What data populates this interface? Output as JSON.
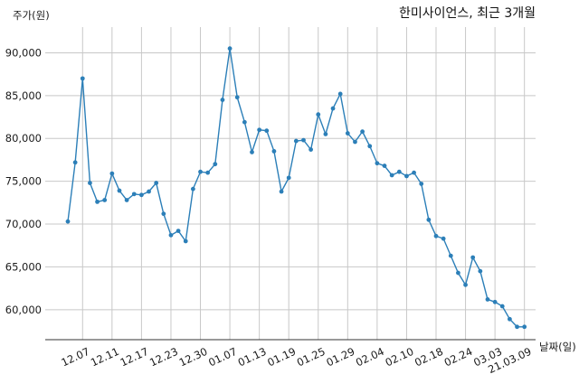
{
  "chart_data": {
    "type": "line",
    "title": "한미사이언스, 최근 3개월",
    "ylabel": "주가(원)",
    "xlabel": "날짜(일)",
    "ylim": [
      56500,
      93000
    ],
    "yticks": [
      60000,
      65000,
      70000,
      75000,
      80000,
      85000,
      90000
    ],
    "ytick_labels": [
      "60,000",
      "65,000",
      "70,000",
      "75,000",
      "80,000",
      "85,000",
      "90,000"
    ],
    "xtick_labels": [
      "12.07",
      "12.11",
      "12.17",
      "12.23",
      "12.30",
      "01.07",
      "01.13",
      "01.19",
      "01.25",
      "01.29",
      "02.04",
      "02.10",
      "02.18",
      "02.24",
      "03.03",
      "21.03.09"
    ],
    "xtick_positions": [
      2,
      6,
      10,
      14,
      18,
      22,
      26,
      30,
      34,
      38,
      42,
      46,
      50,
      54,
      58,
      62
    ],
    "grid": true,
    "color": "#2c7fb8",
    "series": [
      {
        "name": "",
        "values": [
          70300,
          77200,
          87000,
          74800,
          72600,
          72800,
          75900,
          73900,
          72800,
          73500,
          73400,
          73800,
          74800,
          71200,
          68700,
          69200,
          68000,
          74100,
          76100,
          76000,
          77000,
          84500,
          90500,
          84800,
          81900,
          78400,
          81000,
          80900,
          78500,
          73800,
          75400,
          79700,
          79800,
          78700,
          82800,
          80500,
          83500,
          85200,
          80600,
          79600,
          80800,
          79100,
          77100,
          76800,
          75700,
          76100,
          75600,
          76000,
          74700,
          70500,
          68600,
          68300,
          66300,
          64300,
          62900,
          66100,
          64500,
          61200,
          60900,
          60400,
          58900,
          58000,
          58000
        ]
      }
    ]
  }
}
